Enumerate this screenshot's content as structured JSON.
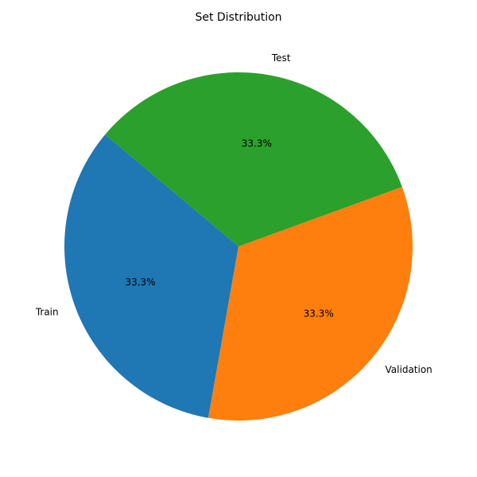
{
  "chart_data": {
    "type": "pie",
    "title": "Set Distribution",
    "categories": [
      "Train",
      "Validation",
      "Test"
    ],
    "values": [
      33.3,
      33.3,
      33.3
    ],
    "percent_labels": [
      "33.3%",
      "33.3%",
      "33.3%"
    ],
    "colors": [
      "#1f77b4",
      "#ff7f0e",
      "#2ca02c"
    ],
    "start_angle_deg": 140,
    "direction": "counterclockwise",
    "legend": "none"
  }
}
